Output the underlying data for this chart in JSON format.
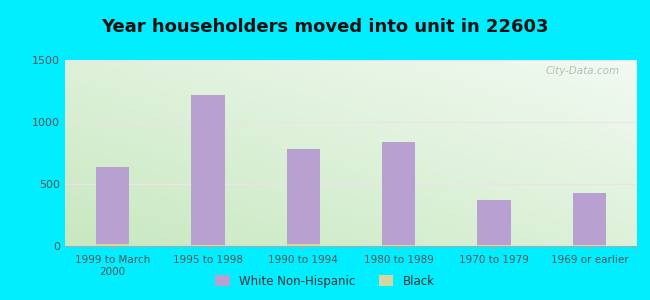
{
  "title": "Year householders moved into unit in 22603",
  "categories": [
    "1999 to March\n2000",
    "1995 to 1998",
    "1990 to 1994",
    "1980 to 1989",
    "1970 to 1979",
    "1969 or earlier"
  ],
  "white_non_hispanic": [
    640,
    1220,
    780,
    840,
    370,
    430
  ],
  "black": [
    20,
    10,
    20,
    10,
    5,
    5
  ],
  "bar_color_white": "#b8a0d0",
  "bar_color_black": "#d4d8a0",
  "ylim": [
    0,
    1500
  ],
  "yticks": [
    0,
    500,
    1000,
    1500
  ],
  "bg_topleft": "#d0f0e8",
  "bg_topright": "#f5f5f5",
  "bg_bottomleft": "#d8eec8",
  "bg_bottomright": "#e8f0e0",
  "outer_background": "#00eeff",
  "watermark": "City-Data.com",
  "legend_white_label": "White Non-Hispanic",
  "legend_black_label": "Black",
  "title_fontsize": 13,
  "bar_width": 0.35,
  "grid_color": "#e0e0e0",
  "tick_color": "#555555",
  "title_color": "#111111"
}
